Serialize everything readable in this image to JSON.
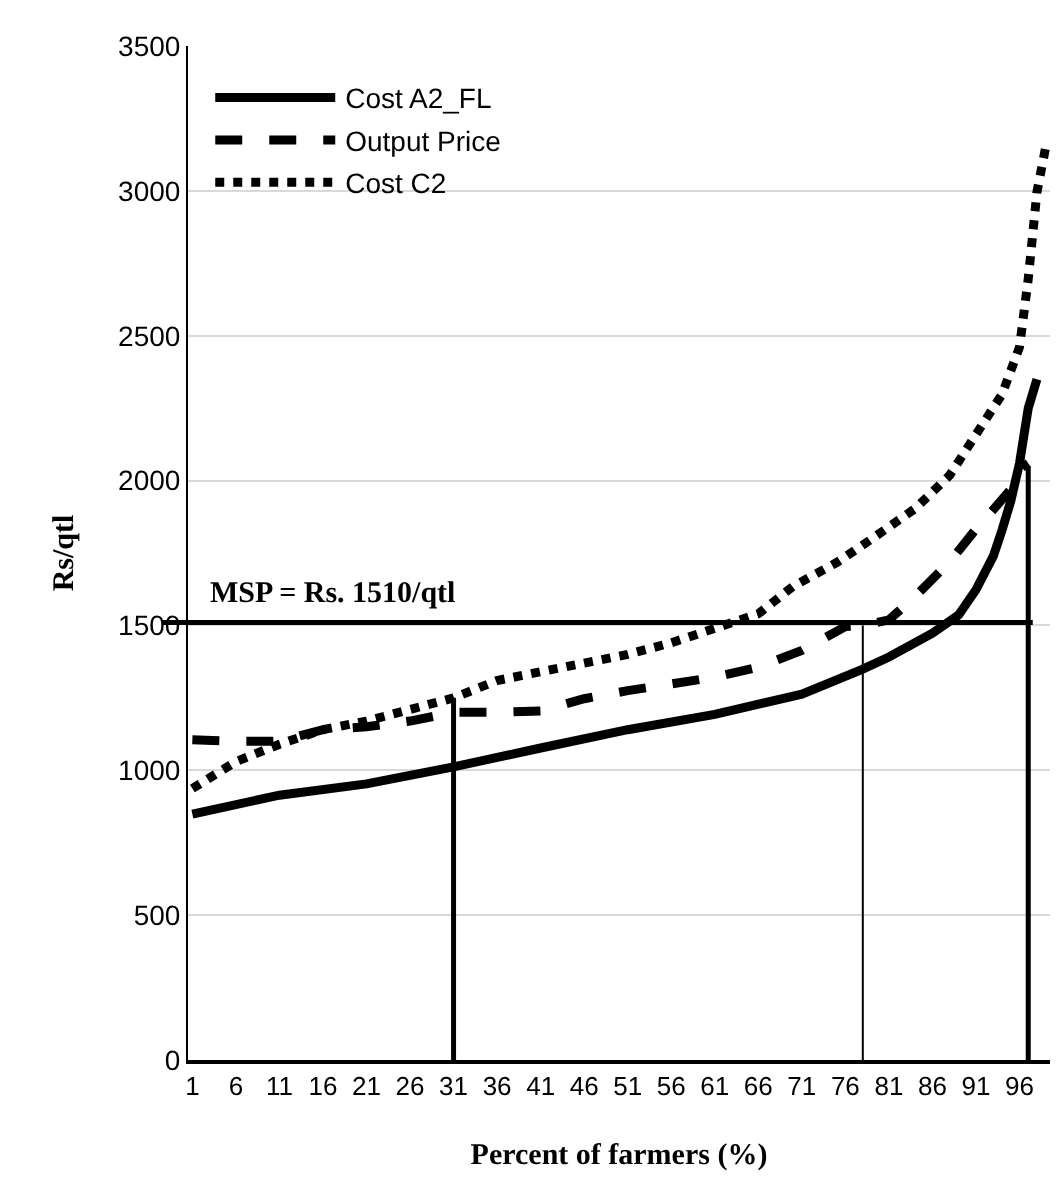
{
  "chart_data": {
    "type": "line",
    "xlabel": "Percent of farmers (%)",
    "ylabel": "Rs/qtl",
    "xlim": [
      0.5,
      99.5
    ],
    "xticks": [
      1,
      6,
      11,
      16,
      21,
      26,
      31,
      36,
      41,
      46,
      51,
      56,
      61,
      66,
      71,
      76,
      81,
      86,
      91,
      96
    ],
    "ylim": [
      0,
      3500
    ],
    "yticks": [
      0,
      500,
      1000,
      1500,
      2000,
      2500,
      3000,
      3500
    ],
    "grid": "y",
    "legend": "top left",
    "marker": "none",
    "series": [
      {
        "name": "Cost A2_FL",
        "color": "#000000",
        "line_style": "solid",
        "x": [
          1,
          11,
          21,
          31,
          41,
          51,
          61,
          71,
          78,
          81,
          86,
          89,
          91,
          93,
          94,
          95,
          96,
          97,
          98
        ],
        "values": [
          849,
          914,
          953,
          1012,
          1077,
          1140,
          1193,
          1263,
          1349,
          1391,
          1473,
          1536,
          1623,
          1740,
          1830,
          1930,
          2060,
          2250,
          2350
        ]
      },
      {
        "name": "Output Price",
        "color": "#000000",
        "line_style": "dashed",
        "x": [
          1,
          6,
          11,
          16,
          21,
          26,
          31,
          36,
          41,
          46,
          51,
          56,
          61,
          66,
          71,
          76,
          78,
          81,
          84,
          88,
          91,
          93,
          95,
          96,
          97
        ],
        "values": [
          1105,
          1100,
          1100,
          1140,
          1150,
          1170,
          1200,
          1200,
          1205,
          1247,
          1275,
          1298,
          1321,
          1356,
          1414,
          1496,
          1500,
          1519,
          1600,
          1720,
          1833,
          1900,
          1970,
          2040,
          2060
        ]
      },
      {
        "name": "Cost C2",
        "color": "#000000",
        "line_style": "dotted",
        "x": [
          1,
          6,
          11,
          16,
          21,
          26,
          31,
          36,
          41,
          46,
          51,
          56,
          61,
          66,
          70,
          75,
          79,
          84,
          88,
          91,
          94,
          96,
          97,
          98,
          99
        ],
        "values": [
          937,
          1030,
          1090,
          1140,
          1170,
          1210,
          1250,
          1310,
          1340,
          1370,
          1400,
          1440,
          1490,
          1540,
          1635,
          1717,
          1798,
          1903,
          2019,
          2159,
          2298,
          2461,
          2696,
          2996,
          3150
        ]
      },
      {
        "color": "#000000",
        "line_style": "solid",
        "x": [
          31,
          31
        ],
        "values": [
          0,
          1250
        ]
      },
      {
        "color": "#000000",
        "line_style": "solid",
        "x": [
          78,
          78
        ],
        "values": [
          0,
          1500
        ]
      },
      {
        "color": "#000000",
        "line_style": "solid",
        "x": [
          97,
          97
        ],
        "values": [
          0,
          2050
        ]
      }
    ],
    "ref_lines": [
      {
        "axis": "y",
        "value": 1510,
        "label": "MSP = Rs. 1510/qtl",
        "color": "#000000"
      }
    ]
  }
}
